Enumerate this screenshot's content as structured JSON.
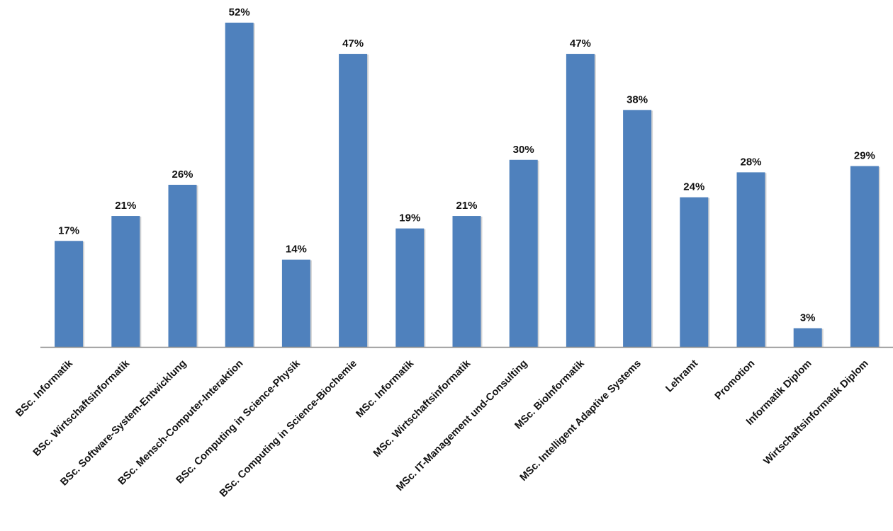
{
  "chart_data": {
    "type": "bar",
    "title": "",
    "xlabel": "",
    "ylabel": "",
    "ylim": [
      0,
      52
    ],
    "grid": false,
    "legend": "none",
    "bar_color": "#4f81bd",
    "categories": [
      "BSc. Informatik",
      "BSc. Wirtschaftsinformatik",
      "BSc. Software-System-Entwicklung",
      "BSc. Mensch-Computer-Interaktion",
      "BSc. Computing in Science-Physik",
      "BSc. Computing in Science-Biochemie",
      "MSc. Informatik",
      "MSc. Wirtschaftsinformatik",
      "MSc. IT-Management und-Consulting",
      "MSc. BioInformatik",
      "MSc. Intelligent Adaptive Systems",
      "Lehramt",
      "Promotion",
      "Informatik Diplom",
      "Wirtschaftsinformatik Diplom"
    ],
    "values": [
      17,
      21,
      26,
      52,
      14,
      47,
      19,
      21,
      30,
      47,
      38,
      24,
      28,
      3,
      29
    ],
    "value_labels": [
      "17%",
      "21%",
      "26%",
      "52%",
      "14%",
      "47%",
      "19%",
      "21%",
      "30%",
      "47%",
      "38%",
      "24%",
      "28%",
      "3%",
      "29%"
    ]
  }
}
